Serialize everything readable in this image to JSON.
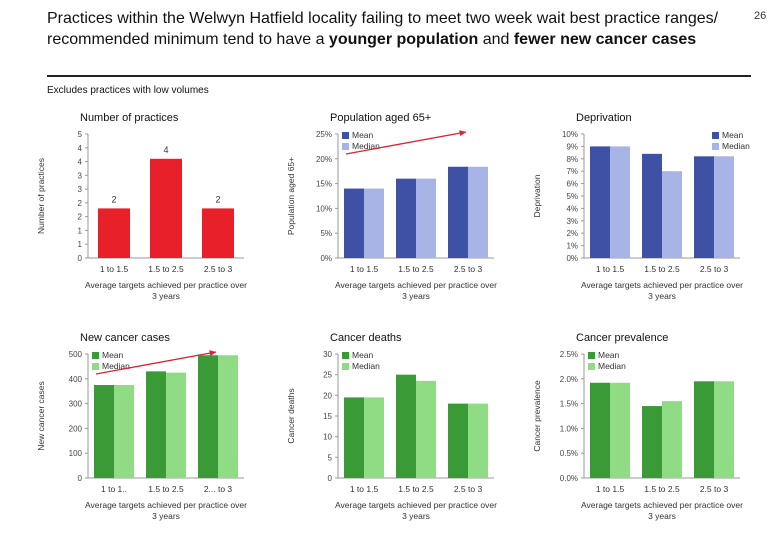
{
  "header": {
    "title_part1": "Practices within the Welwyn Hatfield locality failing to meet two week wait best practice ranges/ recommended minimum tend to have a ",
    "title_bold1": "younger population",
    "title_part2": " and ",
    "title_bold2": "fewer new cancer cases",
    "page_number": "26",
    "note": "Excludes practices with low volumes"
  },
  "colors": {
    "red": "#e8202a",
    "blue_mean": "#3f51a5",
    "blue_median": "#a8b4e6",
    "green_mean": "#3a9a35",
    "green_median": "#8fdc84",
    "arrow": "#d9232f"
  },
  "chart_data": [
    {
      "id": "practices",
      "type": "bar",
      "title": "Number of practices",
      "ylabel": "Number of practices",
      "xlabel": "Average targets achieved per practice over 3 years",
      "categories": [
        "1 to 1.5",
        "1.5 to 2.5",
        "2.5 to 3"
      ],
      "series": [
        {
          "values": [
            2,
            4,
            2
          ],
          "color": "red"
        }
      ],
      "data_labels": [
        "2",
        "4",
        "2"
      ],
      "ylim": [
        0,
        5
      ],
      "yticks": [
        "0",
        "1",
        "1",
        "2",
        "2",
        "3",
        "3",
        "4",
        "4",
        "5"
      ],
      "legend": [],
      "arrow": false
    },
    {
      "id": "population65",
      "type": "bar",
      "title": "Population aged 65+",
      "ylabel": "Population aged 65+",
      "xlabel": "Average targets achieved per practice over 3 years",
      "categories": [
        "1 to 1.5",
        "1.5 to 2.5",
        "2.5 to 3"
      ],
      "series": [
        {
          "name": "Mean",
          "values": [
            14,
            16,
            18.4
          ],
          "color": "blue_mean"
        },
        {
          "name": "Median",
          "values": [
            14,
            16,
            18.4
          ],
          "color": "blue_median"
        }
      ],
      "ylim": [
        0,
        25
      ],
      "yticks": [
        "0%",
        "5%",
        "10%",
        "15%",
        "20%",
        "25%"
      ],
      "legend": [
        "Mean",
        "Median"
      ],
      "arrow": true
    },
    {
      "id": "deprivation",
      "type": "bar",
      "title": "Deprivation",
      "ylabel": "Deprivation",
      "xlabel": "Average targets achieved per practice over 3 years",
      "categories": [
        "1 to 1.5",
        "1.5 to 2.5",
        "2.5 to 3"
      ],
      "series": [
        {
          "name": "Mean",
          "values": [
            9.0,
            8.4,
            8.2
          ],
          "color": "blue_mean"
        },
        {
          "name": "Median",
          "values": [
            9.0,
            7.0,
            8.2
          ],
          "color": "blue_median"
        }
      ],
      "ylim": [
        0,
        10
      ],
      "yticks": [
        "0%",
        "1%",
        "2%",
        "3%",
        "4%",
        "5%",
        "6%",
        "7%",
        "8%",
        "9%",
        "10%"
      ],
      "legend": [
        "Mean",
        "Median"
      ],
      "arrow": false
    },
    {
      "id": "newcases",
      "type": "bar",
      "title": "New cancer cases",
      "ylabel": "New cancer cases",
      "xlabel": "Average targets achieved per practice over 3 years",
      "categories": [
        "1 to 1..",
        "1.5 to 2.5",
        "2... to 3"
      ],
      "series": [
        {
          "name": "Mean",
          "values": [
            375,
            430,
            495
          ],
          "color": "green_mean"
        },
        {
          "name": "Median",
          "values": [
            375,
            425,
            495
          ],
          "color": "green_median"
        }
      ],
      "ylim": [
        0,
        500
      ],
      "yticks": [
        "0",
        "100",
        "200",
        "300",
        "400",
        "500"
      ],
      "legend": [
        "Mean",
        "Median"
      ],
      "arrow": true
    },
    {
      "id": "deaths",
      "type": "bar",
      "title": "Cancer deaths",
      "ylabel": "Cancer deaths",
      "xlabel": "Average targets achieved per practice over 3 years",
      "categories": [
        "1 to 1.5",
        "1.5 to 2.5",
        "2.5 to 3"
      ],
      "series": [
        {
          "name": "Mean",
          "values": [
            19.5,
            25,
            18
          ],
          "color": "green_mean"
        },
        {
          "name": "Median",
          "values": [
            19.5,
            23.5,
            18
          ],
          "color": "green_median"
        }
      ],
      "ylim": [
        0,
        30
      ],
      "yticks": [
        "0",
        "5",
        "10",
        "15",
        "20",
        "25",
        "30"
      ],
      "legend": [
        "Mean",
        "Median"
      ],
      "arrow": false
    },
    {
      "id": "prevalence",
      "type": "bar",
      "title": "Cancer prevalence",
      "ylabel": "Cancer prevalence",
      "xlabel": "Average targets achieved per practice over 3 years",
      "categories": [
        "1 to 1.5",
        "1.5 to 2.5",
        "2.5 to 3"
      ],
      "series": [
        {
          "name": "Mean",
          "values": [
            1.92,
            1.45,
            1.95
          ],
          "color": "green_mean"
        },
        {
          "name": "Median",
          "values": [
            1.92,
            1.55,
            1.95
          ],
          "color": "green_median"
        }
      ],
      "ylim": [
        0,
        2.5
      ],
      "yticks": [
        "0.0%",
        "0.5%",
        "1.0%",
        "1.5%",
        "2.0%",
        "2.5%"
      ],
      "legend": [
        "Mean",
        "Median"
      ],
      "arrow": false
    }
  ]
}
